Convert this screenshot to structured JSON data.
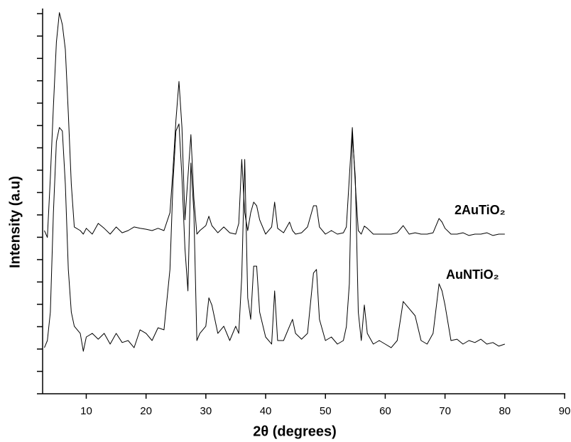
{
  "chart_data": {
    "type": "line",
    "x_label": "2θ (degrees)",
    "y_label": "Intensity (a.u)",
    "xlim": [
      2.7,
      90
    ],
    "xticks": [
      10,
      20,
      30,
      40,
      50,
      60,
      70,
      80,
      90
    ],
    "ylim": [
      0,
      1720
    ],
    "yticks": [
      0,
      100,
      200,
      300,
      400,
      500,
      600,
      700,
      800,
      900,
      1000,
      1100,
      1200,
      1300,
      1400,
      1500,
      1600,
      1700
    ],
    "x": [
      3,
      3.5,
      4,
      4.5,
      5,
      5.5,
      6,
      6.5,
      7,
      7.5,
      8,
      9,
      9.5,
      10,
      11,
      12,
      13,
      14,
      15,
      16,
      17,
      18,
      19,
      20,
      21,
      22,
      23,
      24,
      24.5,
      25,
      25.5,
      26,
      26.5,
      27,
      27.5,
      28,
      28.5,
      29,
      30,
      30.5,
      31,
      32,
      33,
      34,
      35,
      35.5,
      36,
      36.5,
      37,
      37.5,
      38,
      38.5,
      39,
      40,
      41,
      41.5,
      42,
      43,
      44,
      44.5,
      45,
      46,
      47,
      48,
      48.5,
      49,
      50,
      51,
      52,
      53,
      53.5,
      54,
      54.5,
      55,
      55.5,
      56,
      56.5,
      57,
      58,
      59,
      60,
      61,
      62,
      63,
      64,
      65,
      66,
      67,
      68,
      69,
      69.5,
      70,
      71,
      72,
      73,
      74,
      75,
      76,
      77,
      78,
      79,
      80
    ],
    "series": [
      {
        "name": "2AuTiO₂",
        "color": "#000000",
        "values": [
          730,
          699,
          968,
          1286,
          1572,
          1705,
          1651,
          1540,
          1254,
          937,
          746,
          730,
          714,
          740,
          714,
          762,
          740,
          714,
          746,
          720,
          730,
          746,
          740,
          736,
          730,
          740,
          730,
          810,
          1000,
          1222,
          1397,
          1191,
          778,
          968,
          1159,
          873,
          714,
          730,
          752,
          794,
          752,
          720,
          746,
          720,
          714,
          762,
          1048,
          810,
          730,
          810,
          857,
          841,
          778,
          714,
          746,
          857,
          740,
          720,
          768,
          730,
          714,
          720,
          746,
          841,
          841,
          746,
          714,
          730,
          714,
          720,
          746,
          968,
          1191,
          937,
          730,
          714,
          750,
          740,
          714,
          714,
          714,
          714,
          720,
          752,
          714,
          720,
          714,
          714,
          720,
          784,
          768,
          740,
          714,
          714,
          720,
          708,
          714,
          714,
          720,
          708,
          714,
          714
        ]
      },
      {
        "name": "AuNTiO₂",
        "color": "#000000",
        "values": [
          206,
          238,
          365,
          810,
          1127,
          1191,
          1175,
          937,
          556,
          365,
          302,
          270,
          190,
          254,
          270,
          244,
          270,
          222,
          270,
          229,
          238,
          206,
          286,
          270,
          238,
          295,
          286,
          556,
          937,
          1175,
          1207,
          968,
          651,
          460,
          1032,
          810,
          238,
          270,
          302,
          429,
          397,
          270,
          302,
          238,
          302,
          270,
          524,
          1048,
          429,
          333,
          571,
          571,
          365,
          254,
          222,
          460,
          238,
          238,
          302,
          333,
          270,
          244,
          270,
          540,
          556,
          333,
          238,
          254,
          222,
          238,
          300,
          492,
          1159,
          968,
          365,
          238,
          397,
          270,
          222,
          238,
          222,
          206,
          238,
          413,
          381,
          349,
          238,
          222,
          270,
          492,
          460,
          397,
          238,
          244,
          222,
          238,
          229,
          244,
          222,
          229,
          213,
          222
        ]
      }
    ]
  }
}
